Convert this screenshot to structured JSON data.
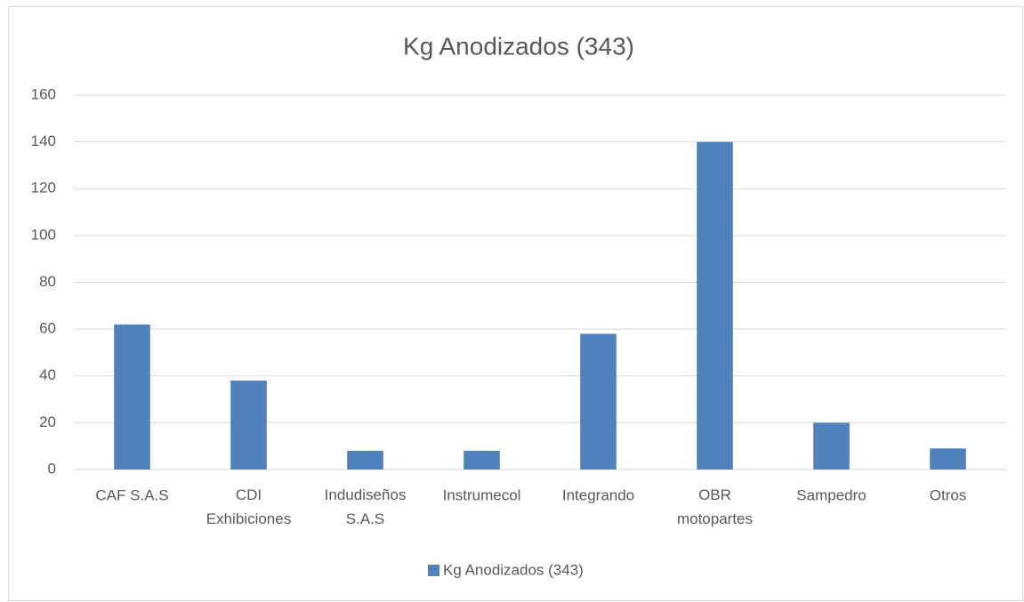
{
  "chart_data": {
    "type": "bar",
    "title": "Kg Anodizados (343)",
    "categories": [
      "CAF S.A.S",
      "CDI Exhibiciones",
      "Indudiseños S.A.S",
      "Instrumecol",
      "Integrando",
      "OBR motopartes",
      "Sampedro",
      "Otros"
    ],
    "series": [
      {
        "name": "Kg Anodizados (343)",
        "color": "#4f81bd",
        "values": [
          62,
          38,
          8,
          8,
          58,
          140,
          20,
          9
        ]
      }
    ],
    "ylim": [
      0,
      160
    ],
    "yticks": [
      0,
      20,
      40,
      60,
      80,
      100,
      120,
      140,
      160
    ],
    "grid": true,
    "legend": "bottom"
  }
}
